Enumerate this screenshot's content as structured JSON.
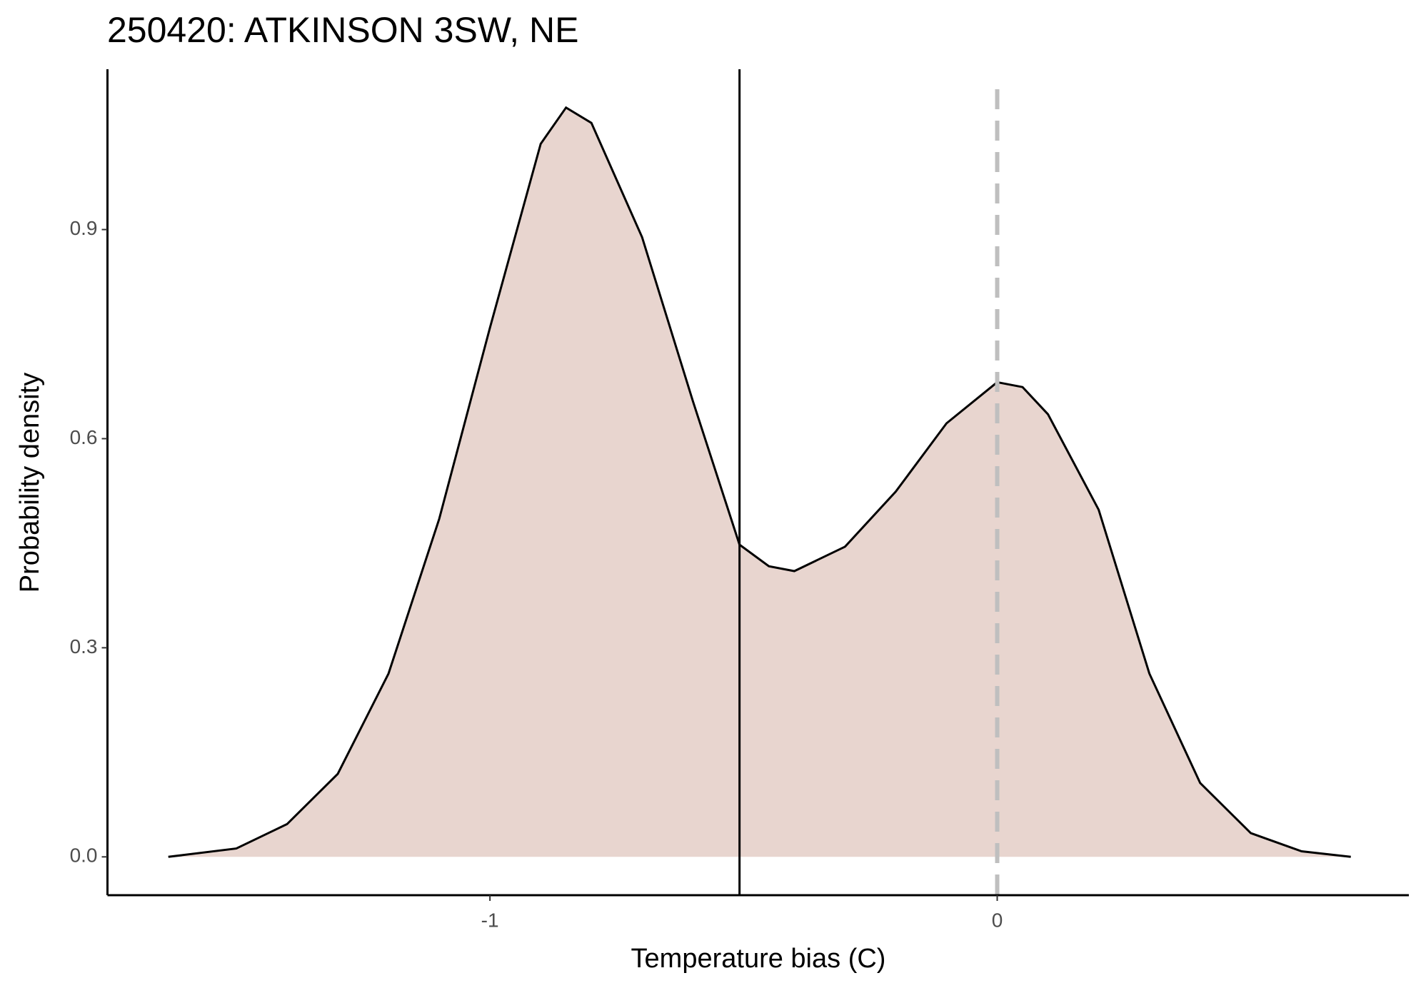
{
  "chart_data": {
    "type": "density",
    "title": "250420: ATKINSON 3SW, NE",
    "x_label": "Temperature bias (C)",
    "y_label": "Probability density",
    "x": [
      -1.634,
      -1.5,
      -1.4,
      -1.3,
      -1.2,
      -1.1,
      -1.0,
      -0.9,
      -0.85,
      -0.8,
      -0.7,
      -0.6,
      -0.508,
      -0.45,
      -0.4,
      -0.3,
      -0.2,
      -0.1,
      0.0,
      0.05,
      0.1,
      0.2,
      0.3,
      0.4,
      0.5,
      0.6,
      0.697
    ],
    "y": [
      0.0,
      0.012,
      0.047,
      0.119,
      0.263,
      0.485,
      0.759,
      1.023,
      1.075,
      1.053,
      0.889,
      0.654,
      0.448,
      0.417,
      0.41,
      0.445,
      0.524,
      0.622,
      0.681,
      0.674,
      0.635,
      0.498,
      0.263,
      0.106,
      0.034,
      0.008,
      0.0
    ],
    "fill_color": "#e8d5cf",
    "line_color": "#000000",
    "reference_lines": [
      {
        "value": -0.508,
        "color": "#000000",
        "dashed": false
      },
      {
        "value": 0,
        "color": "#bfbfbf",
        "dashed": true
      }
    ],
    "xlim": [
      -1.754,
      0.8115
    ],
    "ylim": [
      -0.055,
      1.13
    ],
    "xticks": [
      -1,
      0
    ],
    "yticks": [
      {
        "value": 0,
        "label": "0.0"
      },
      0.3,
      0.6,
      0.9
    ],
    "grid": false
  }
}
